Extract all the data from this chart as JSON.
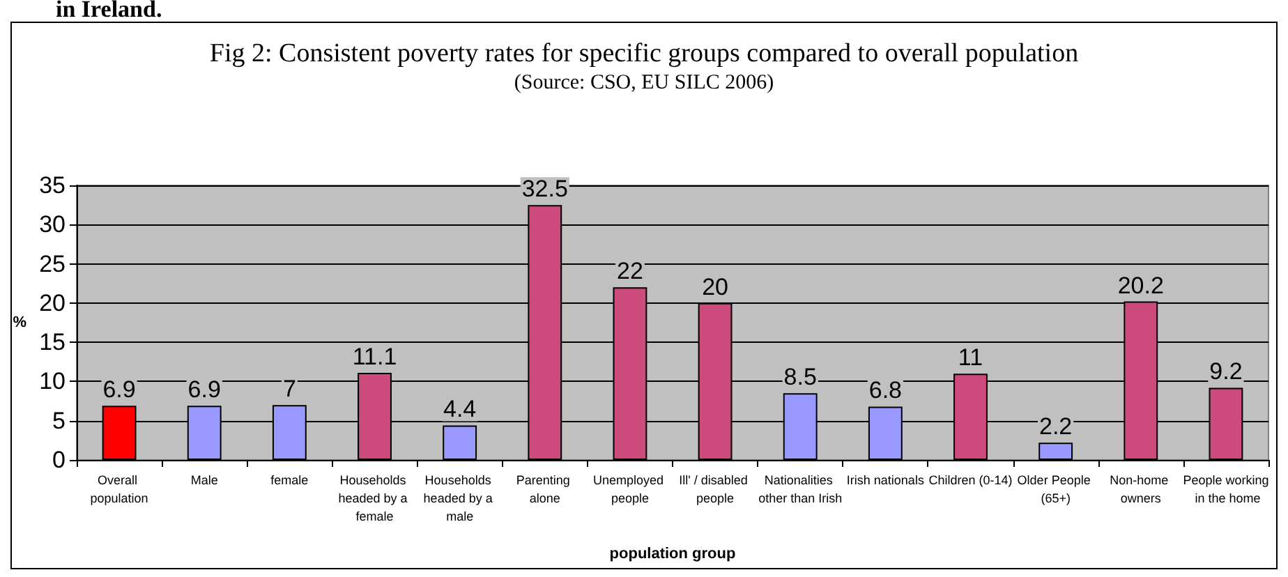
{
  "chart_data": {
    "type": "bar",
    "title": "Fig 2: Consistent poverty rates for specific groups compared to overall population",
    "subtitle": "(Source: CSO, EU SILC 2006)",
    "xlabel": "population group",
    "ylabel": "%",
    "annotations": [
      "in Ireland."
    ],
    "categories": [
      "Overall population",
      "Male",
      "female",
      "Households headed by a female",
      "Households headed by a male",
      "Parenting alone",
      "Unemployed people",
      "Ill' / disabled people",
      "Nationalities other than Irish",
      "Irish nationals",
      "Children (0-14)",
      "Older People (65+)",
      "Non-home owners",
      "People working in the home"
    ],
    "values": [
      6.9,
      6.9,
      7,
      11.1,
      4.4,
      32.5,
      22,
      20,
      8.5,
      6.8,
      11,
      2.2,
      20.2,
      9.2
    ],
    "colors": [
      "#ff0000",
      "#9999ff",
      "#9999ff",
      "#cc4a7c",
      "#9999ff",
      "#cc4a7c",
      "#cc4a7c",
      "#cc4a7c",
      "#9999ff",
      "#9999ff",
      "#cc4a7c",
      "#9999ff",
      "#cc4a7c",
      "#cc4a7c"
    ],
    "ylim": [
      0,
      35
    ],
    "yticks": [
      0,
      5,
      10,
      15,
      20,
      25,
      30,
      35
    ],
    "grid": "y",
    "data_labels": true
  }
}
